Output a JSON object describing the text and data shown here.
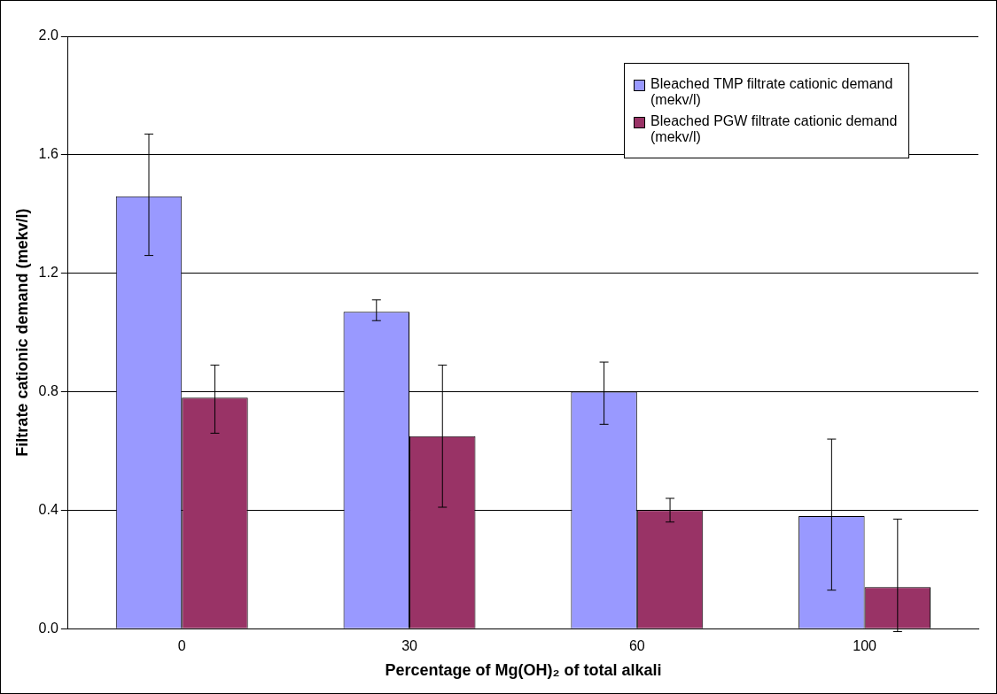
{
  "chart_data": {
    "type": "bar",
    "xlabel": "Percentage of Mg(OH)₂ of total alkali",
    "ylabel": "Filtrate cationic demand (mekv/l)",
    "categories": [
      "0",
      "30",
      "60",
      "100"
    ],
    "series": [
      {
        "name": "Bleached TMP filtrate cationic demand (mekv/l)",
        "color": "#9999ff",
        "values": [
          1.46,
          1.07,
          0.8,
          0.38
        ],
        "errors": [
          [
            1.26,
            1.67
          ],
          [
            1.04,
            1.11
          ],
          [
            0.69,
            0.9
          ],
          [
            0.13,
            0.64
          ]
        ]
      },
      {
        "name": "Bleached PGW filtrate cationic demand (mekv/l)",
        "color": "#993366",
        "values": [
          0.78,
          0.65,
          0.4,
          0.14
        ],
        "errors": [
          [
            0.66,
            0.89
          ],
          [
            0.41,
            0.89
          ],
          [
            0.36,
            0.44
          ],
          [
            -0.01,
            0.37
          ]
        ]
      }
    ],
    "ylim": [
      0,
      2
    ],
    "yticks": [
      {
        "value": 0,
        "label": "0.0"
      },
      {
        "value": 0.4,
        "label": "0.4"
      },
      {
        "value": 0.8,
        "label": "0.8"
      },
      {
        "value": 1.2,
        "label": "1.2"
      },
      {
        "value": 1.6,
        "label": "1.6"
      },
      {
        "value": 2,
        "label": "2.0"
      }
    ],
    "grid": "y",
    "legend": "top right"
  }
}
